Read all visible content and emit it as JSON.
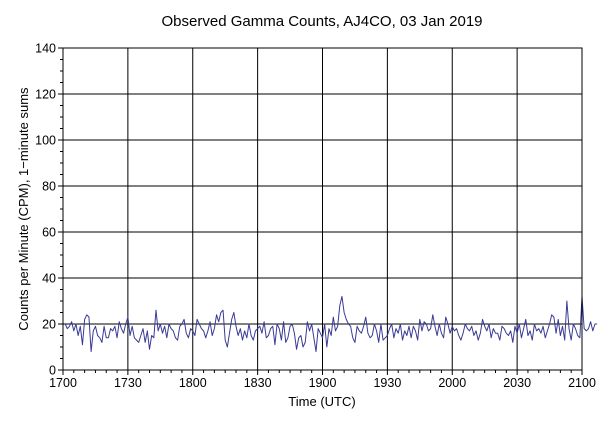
{
  "chart_data": {
    "type": "line",
    "title": "Observed Gamma Counts, AJ4CO, 03 Jan 2019",
    "xlabel": "Time (UTC)",
    "ylabel": "Counts per Minute (CPM), 1−minute sums",
    "x_tick_labels": [
      "1700",
      "1730",
      "1800",
      "1830",
      "1900",
      "1930",
      "2000",
      "2030",
      "2100"
    ],
    "y_tick_labels": [
      "0",
      "20",
      "40",
      "60",
      "80",
      "100",
      "120",
      "140"
    ],
    "xlim_minutes": [
      0,
      240
    ],
    "ylim": [
      0,
      140
    ],
    "grid": true,
    "line_color": "#3a3a96",
    "x_unit": "minutes after 1700 UTC",
    "series": [
      {
        "x_start_minute": 1,
        "x_step_minutes": 1,
        "values": [
          20,
          18,
          19,
          21,
          17,
          20,
          15,
          19,
          11,
          22,
          24,
          23,
          8,
          17,
          19,
          15,
          14,
          12,
          19,
          14,
          14,
          18,
          17,
          19,
          14,
          21,
          18,
          16,
          20,
          23,
          15,
          19,
          14,
          13,
          12,
          15,
          18,
          12,
          17,
          9,
          15,
          14,
          26,
          17,
          20,
          16,
          19,
          14,
          20,
          18,
          17,
          14,
          13,
          19,
          20,
          22,
          16,
          14,
          18,
          17,
          15,
          22,
          20,
          18,
          17,
          14,
          17,
          21,
          15,
          18,
          24,
          21,
          25,
          26,
          13,
          10,
          16,
          22,
          25,
          19,
          15,
          18,
          13,
          17,
          14,
          20,
          15,
          13,
          17,
          18,
          19,
          16,
          21,
          14,
          15,
          18,
          19,
          11,
          20,
          18,
          13,
          21,
          12,
          14,
          19,
          20,
          16,
          9,
          14,
          15,
          10,
          12,
          21,
          17,
          20,
          14,
          8,
          18,
          16,
          14,
          20,
          10,
          18,
          15,
          23,
          17,
          19,
          28,
          32,
          25,
          22,
          20,
          19,
          14,
          12,
          19,
          17,
          16,
          19,
          23,
          16,
          14,
          15,
          20,
          17,
          12,
          20,
          13,
          14,
          15,
          18,
          20,
          14,
          18,
          16,
          20,
          13,
          17,
          15,
          19,
          14,
          19,
          17,
          13,
          22,
          17,
          21,
          20,
          17,
          18,
          24,
          19,
          15,
          20,
          16,
          14,
          23,
          20,
          16,
          19,
          17,
          18,
          15,
          13,
          16,
          20,
          18,
          17,
          19,
          15,
          17,
          13,
          16,
          22,
          19,
          17,
          20,
          14,
          18,
          16,
          16,
          13,
          19,
          18,
          16,
          15,
          17,
          12,
          19,
          16,
          20,
          14,
          18,
          22,
          15,
          17,
          13,
          20,
          17,
          18,
          16,
          19,
          14,
          17,
          20,
          24,
          23,
          16,
          22,
          15,
          19,
          13,
          30,
          18,
          13,
          20,
          18,
          15,
          14,
          32,
          18,
          17,
          18,
          21,
          17,
          20,
          20
        ]
      }
    ]
  }
}
